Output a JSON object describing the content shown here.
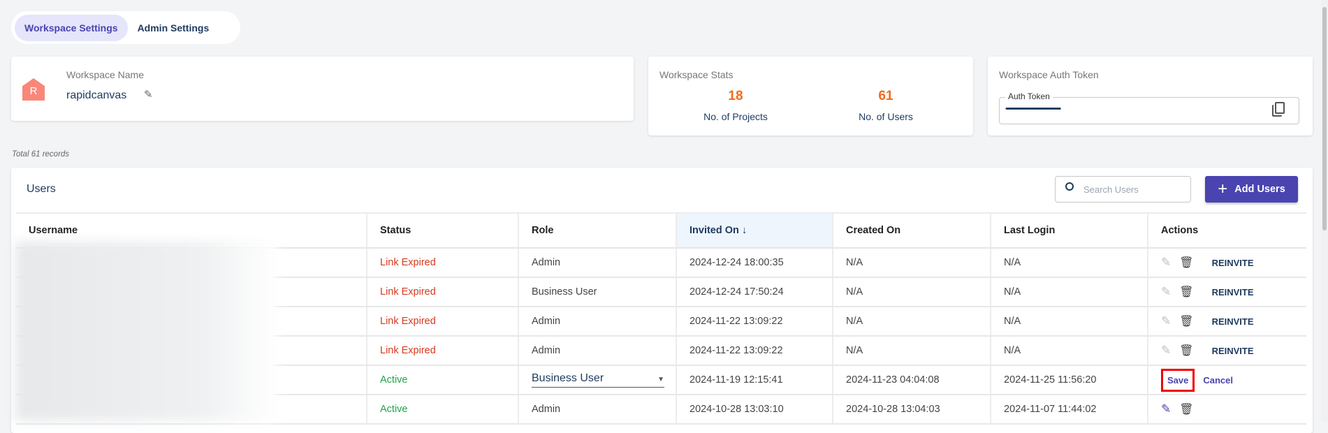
{
  "tabs": [
    {
      "label": "Workspace Settings",
      "active": true
    },
    {
      "label": "Admin Settings",
      "active": false
    }
  ],
  "workspace": {
    "label": "Workspace Name",
    "avatar_letter": "R",
    "name": "rapidcanvas",
    "avatar_color": "#f8877a"
  },
  "stats": {
    "label": "Workspace Stats",
    "projects": "18",
    "projects_label": "No. of Projects",
    "users": "61",
    "users_label": "No. of Users"
  },
  "token": {
    "label": "Workspace Auth Token",
    "field_label": "Auth Token",
    "value": "••••••••••••••••••••••••••••••••••••••••••••••••••••••••••••••"
  },
  "total_records": "Total 61 records",
  "users": {
    "title": "Users",
    "search_placeholder": "Search Users",
    "add_label": "Add Users",
    "columns": [
      "Username",
      "Status",
      "Role",
      "Invited On",
      "Created On",
      "Last Login",
      "Actions"
    ],
    "reinvite": "REINVITE",
    "save": "Save",
    "cancel": "Cancel",
    "rows": [
      {
        "status": "Link Expired",
        "role": "Admin",
        "invited": "2024-12-24 18:00:35",
        "created": "N/A",
        "last": "N/A"
      },
      {
        "status": "Link Expired",
        "role": "Business User",
        "invited": "2024-12-24 17:50:24",
        "created": "N/A",
        "last": "N/A"
      },
      {
        "status": "Link Expired",
        "role": "Admin",
        "invited": "2024-11-22 13:09:22",
        "created": "N/A",
        "last": "N/A"
      },
      {
        "status": "Link Expired",
        "role": "Admin",
        "invited": "2024-11-22 13:09:22",
        "created": "N/A",
        "last": "N/A"
      },
      {
        "status": "Active",
        "role": "Business User",
        "invited": "2024-11-19 12:15:41",
        "created": "2024-11-23 04:04:08",
        "last": "2024-11-25 11:56:20"
      },
      {
        "status": "Active",
        "role": "Admin",
        "invited": "2024-10-28 13:03:10",
        "created": "2024-10-28 13:04:03",
        "last": "2024-11-07 11:44:02"
      }
    ]
  },
  "colors": {
    "accent": "#4a44b0",
    "orange": "#f26a1b",
    "expired": "#d63a1e",
    "active": "#1fa64a"
  }
}
